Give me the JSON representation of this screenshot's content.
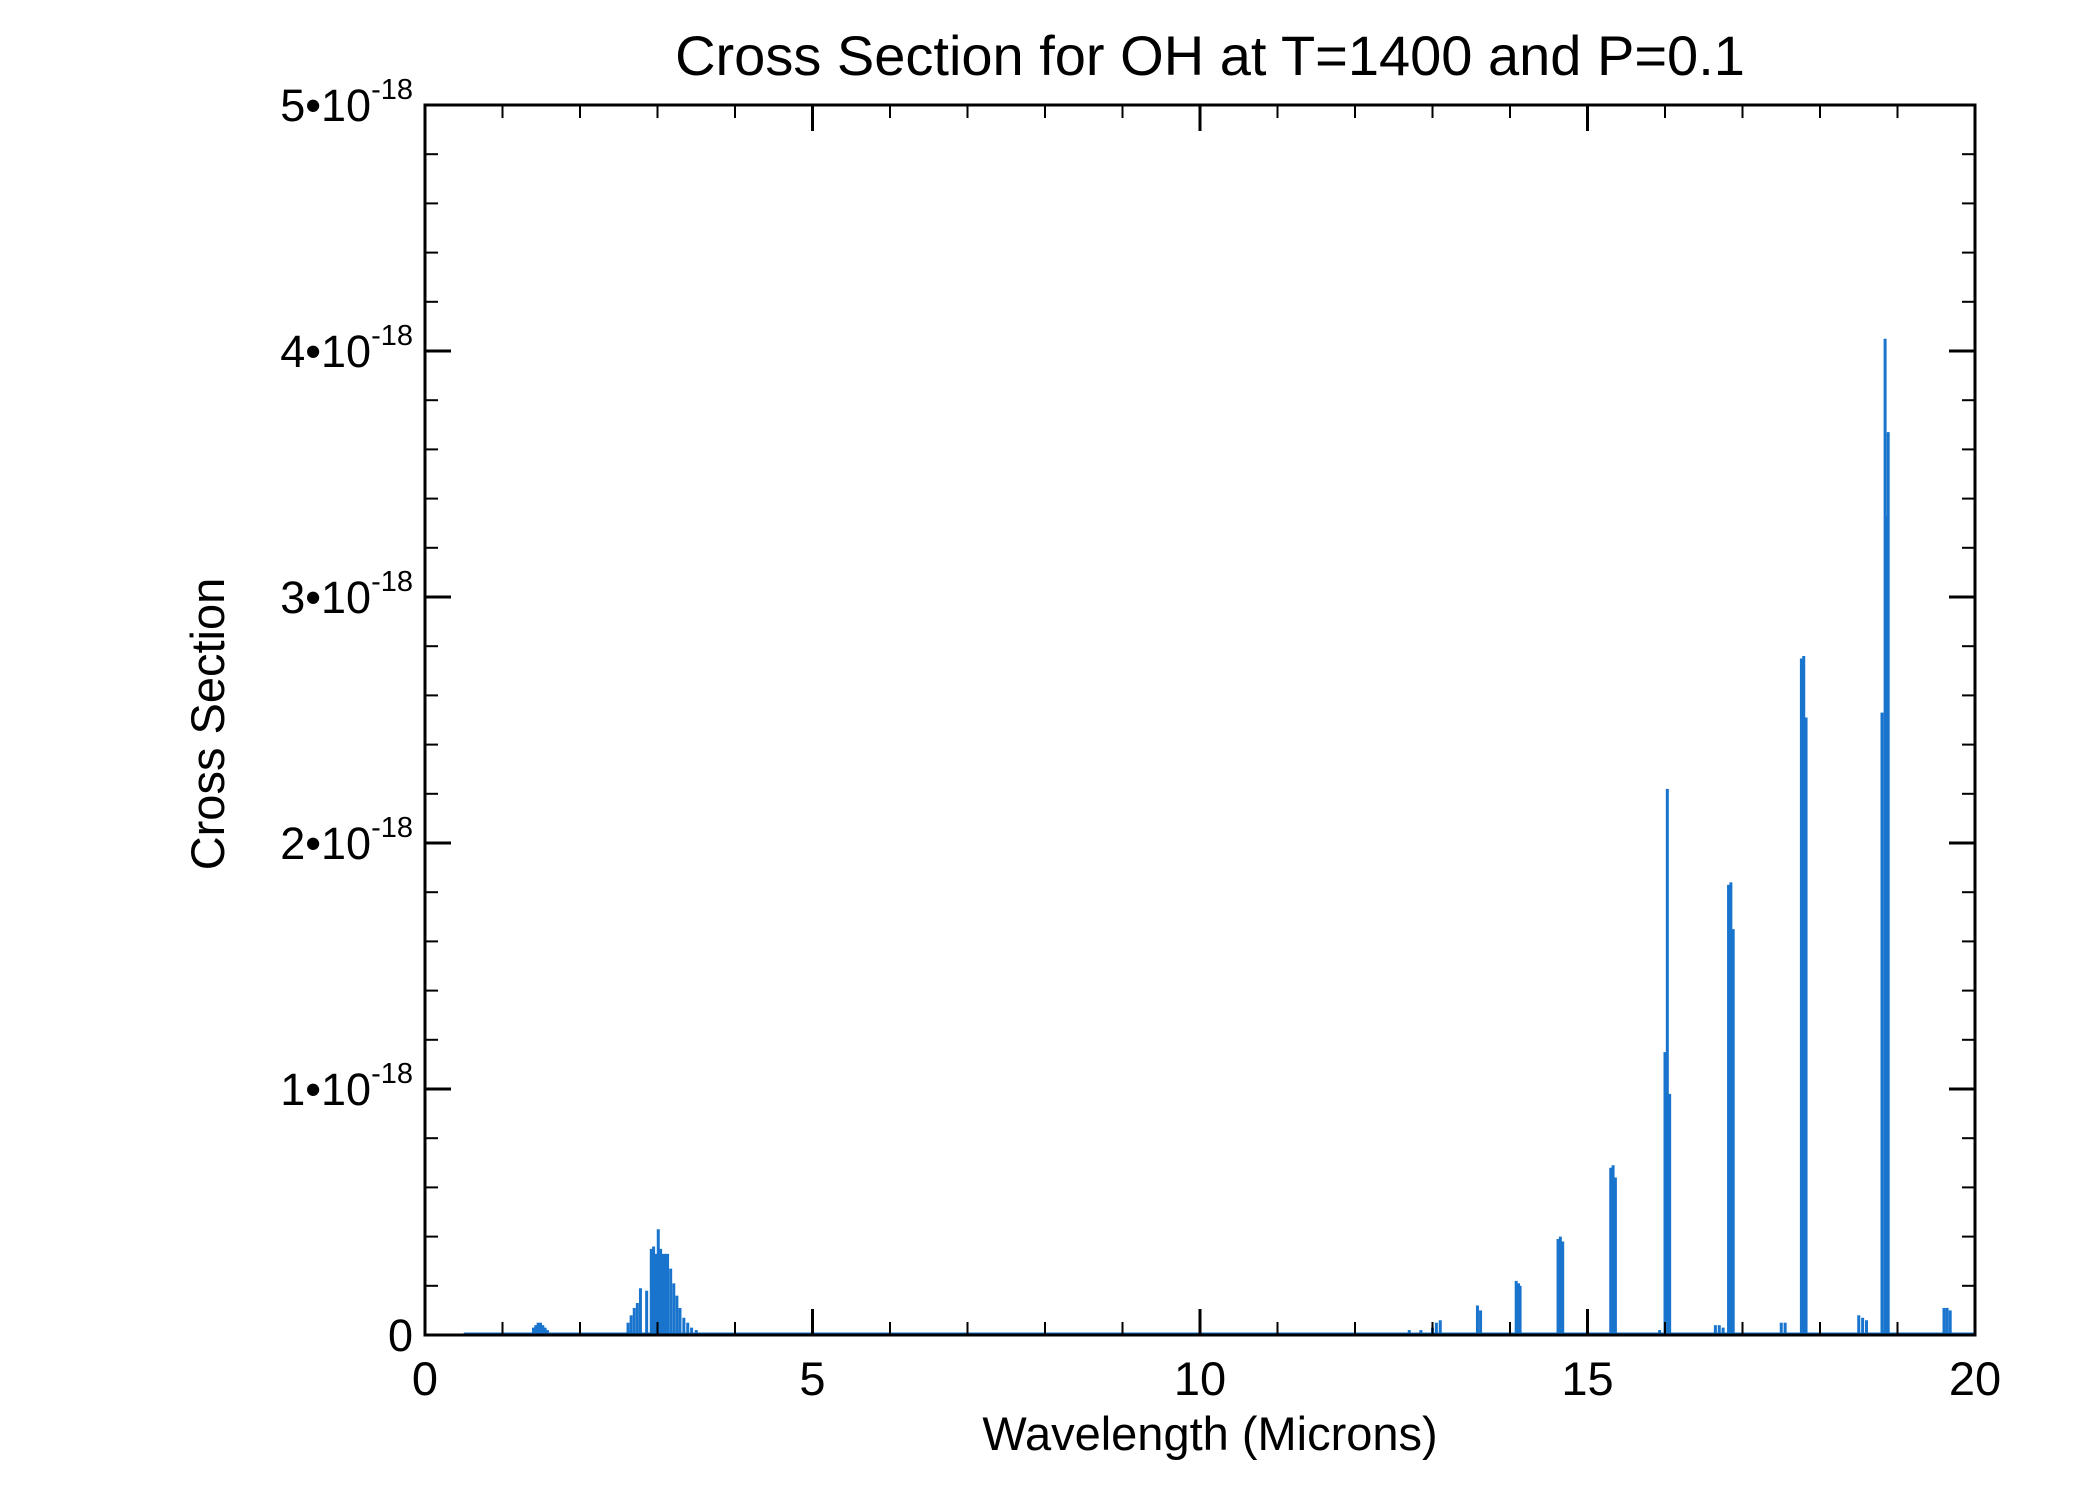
{
  "chart_data": {
    "type": "line",
    "title": "Cross Section for OH at T=1400 and P=0.1",
    "xlabel": "Wavelength (Microns)",
    "ylabel": "Cross Section",
    "xlim": [
      0,
      20
    ],
    "ylim": [
      0,
      5e-18
    ],
    "x_ticks": [
      {
        "value": 0,
        "label": "0"
      },
      {
        "value": 5,
        "label": "5"
      },
      {
        "value": 10,
        "label": "10"
      },
      {
        "value": 15,
        "label": "15"
      },
      {
        "value": 20,
        "label": "20"
      }
    ],
    "y_ticks": [
      {
        "value": 0,
        "mantissa": "0",
        "exponent": ""
      },
      {
        "value": 1e-18,
        "mantissa": "1•10",
        "exponent": "-18"
      },
      {
        "value": 2e-18,
        "mantissa": "2•10",
        "exponent": "-18"
      },
      {
        "value": 3e-18,
        "mantissa": "3•10",
        "exponent": "-18"
      },
      {
        "value": 4e-18,
        "mantissa": "4•10",
        "exponent": "-18"
      },
      {
        "value": 5e-18,
        "mantissa": "5•10",
        "exponent": "-18"
      }
    ],
    "x_minor_step": 1,
    "y_minor_step": 2e-19,
    "grid": false,
    "legend": "none",
    "series_color": "#1874cd",
    "baseline_start": 0.5,
    "peaks": [
      {
        "x": 1.4,
        "y": 3e-20
      },
      {
        "x": 1.43,
        "y": 4e-20
      },
      {
        "x": 1.46,
        "y": 5e-20
      },
      {
        "x": 1.49,
        "y": 5e-20
      },
      {
        "x": 1.52,
        "y": 4e-20
      },
      {
        "x": 1.55,
        "y": 3e-20
      },
      {
        "x": 1.58,
        "y": 2e-20
      },
      {
        "x": 2.62,
        "y": 5e-20
      },
      {
        "x": 2.66,
        "y": 8e-20
      },
      {
        "x": 2.7,
        "y": 1.1e-19
      },
      {
        "x": 2.74,
        "y": 1.3e-19
      },
      {
        "x": 2.78,
        "y": 1.9e-19
      },
      {
        "x": 2.86,
        "y": 1.8e-19
      },
      {
        "x": 2.92,
        "y": 3.5e-19
      },
      {
        "x": 2.95,
        "y": 3.6e-19
      },
      {
        "x": 2.98,
        "y": 3.3e-19
      },
      {
        "x": 3.01,
        "y": 4.3e-19
      },
      {
        "x": 3.04,
        "y": 3.5e-19
      },
      {
        "x": 3.07,
        "y": 3.3e-19
      },
      {
        "x": 3.1,
        "y": 3.3e-19
      },
      {
        "x": 3.13,
        "y": 3.3e-19
      },
      {
        "x": 3.17,
        "y": 2.7e-19
      },
      {
        "x": 3.21,
        "y": 2.1e-19
      },
      {
        "x": 3.25,
        "y": 1.6e-19
      },
      {
        "x": 3.29,
        "y": 1.1e-19
      },
      {
        "x": 3.34,
        "y": 7e-20
      },
      {
        "x": 3.39,
        "y": 5e-20
      },
      {
        "x": 3.44,
        "y": 3e-20
      },
      {
        "x": 3.5,
        "y": 2e-20
      },
      {
        "x": 3.56,
        "y": 1e-20
      },
      {
        "x": 3.62,
        "y": 1e-20
      },
      {
        "x": 12.3,
        "y": 1e-20
      },
      {
        "x": 12.6,
        "y": 1e-20
      },
      {
        "x": 12.7,
        "y": 2e-20
      },
      {
        "x": 12.85,
        "y": 2e-20
      },
      {
        "x": 13.0,
        "y": 3e-20
      },
      {
        "x": 13.05,
        "y": 5e-20
      },
      {
        "x": 13.1,
        "y": 6e-20
      },
      {
        "x": 13.58,
        "y": 1.2e-19
      },
      {
        "x": 13.62,
        "y": 1e-19
      },
      {
        "x": 14.08,
        "y": 2.2e-19
      },
      {
        "x": 14.11,
        "y": 2.1e-19
      },
      {
        "x": 14.13,
        "y": 2e-19
      },
      {
        "x": 14.62,
        "y": 3.9e-19
      },
      {
        "x": 14.65,
        "y": 4e-19
      },
      {
        "x": 14.68,
        "y": 3.8e-19
      },
      {
        "x": 15.3,
        "y": 6.8e-19
      },
      {
        "x": 15.33,
        "y": 6.9e-19
      },
      {
        "x": 15.36,
        "y": 6.4e-19
      },
      {
        "x": 15.93,
        "y": 2e-20
      },
      {
        "x": 16.0,
        "y": 1.15e-18
      },
      {
        "x": 16.03,
        "y": 2.22e-18
      },
      {
        "x": 16.06,
        "y": 9.8e-19
      },
      {
        "x": 16.65,
        "y": 4e-20
      },
      {
        "x": 16.7,
        "y": 4e-20
      },
      {
        "x": 16.75,
        "y": 3e-20
      },
      {
        "x": 16.82,
        "y": 1.83e-18
      },
      {
        "x": 16.85,
        "y": 1.84e-18
      },
      {
        "x": 16.88,
        "y": 1.65e-18
      },
      {
        "x": 17.5,
        "y": 5e-20
      },
      {
        "x": 17.55,
        "y": 5e-20
      },
      {
        "x": 17.76,
        "y": 2.75e-18
      },
      {
        "x": 17.79,
        "y": 2.76e-18
      },
      {
        "x": 17.82,
        "y": 2.51e-18
      },
      {
        "x": 18.5,
        "y": 8e-20
      },
      {
        "x": 18.55,
        "y": 7e-20
      },
      {
        "x": 18.6,
        "y": 6e-20
      },
      {
        "x": 18.8,
        "y": 2.53e-18
      },
      {
        "x": 18.84,
        "y": 4.05e-18
      },
      {
        "x": 18.88,
        "y": 3.67e-18
      },
      {
        "x": 18.86,
        "y": 3.33e-18
      },
      {
        "x": 19.6,
        "y": 1.1e-19
      },
      {
        "x": 19.64,
        "y": 1.1e-19
      },
      {
        "x": 19.68,
        "y": 1e-19
      }
    ]
  }
}
